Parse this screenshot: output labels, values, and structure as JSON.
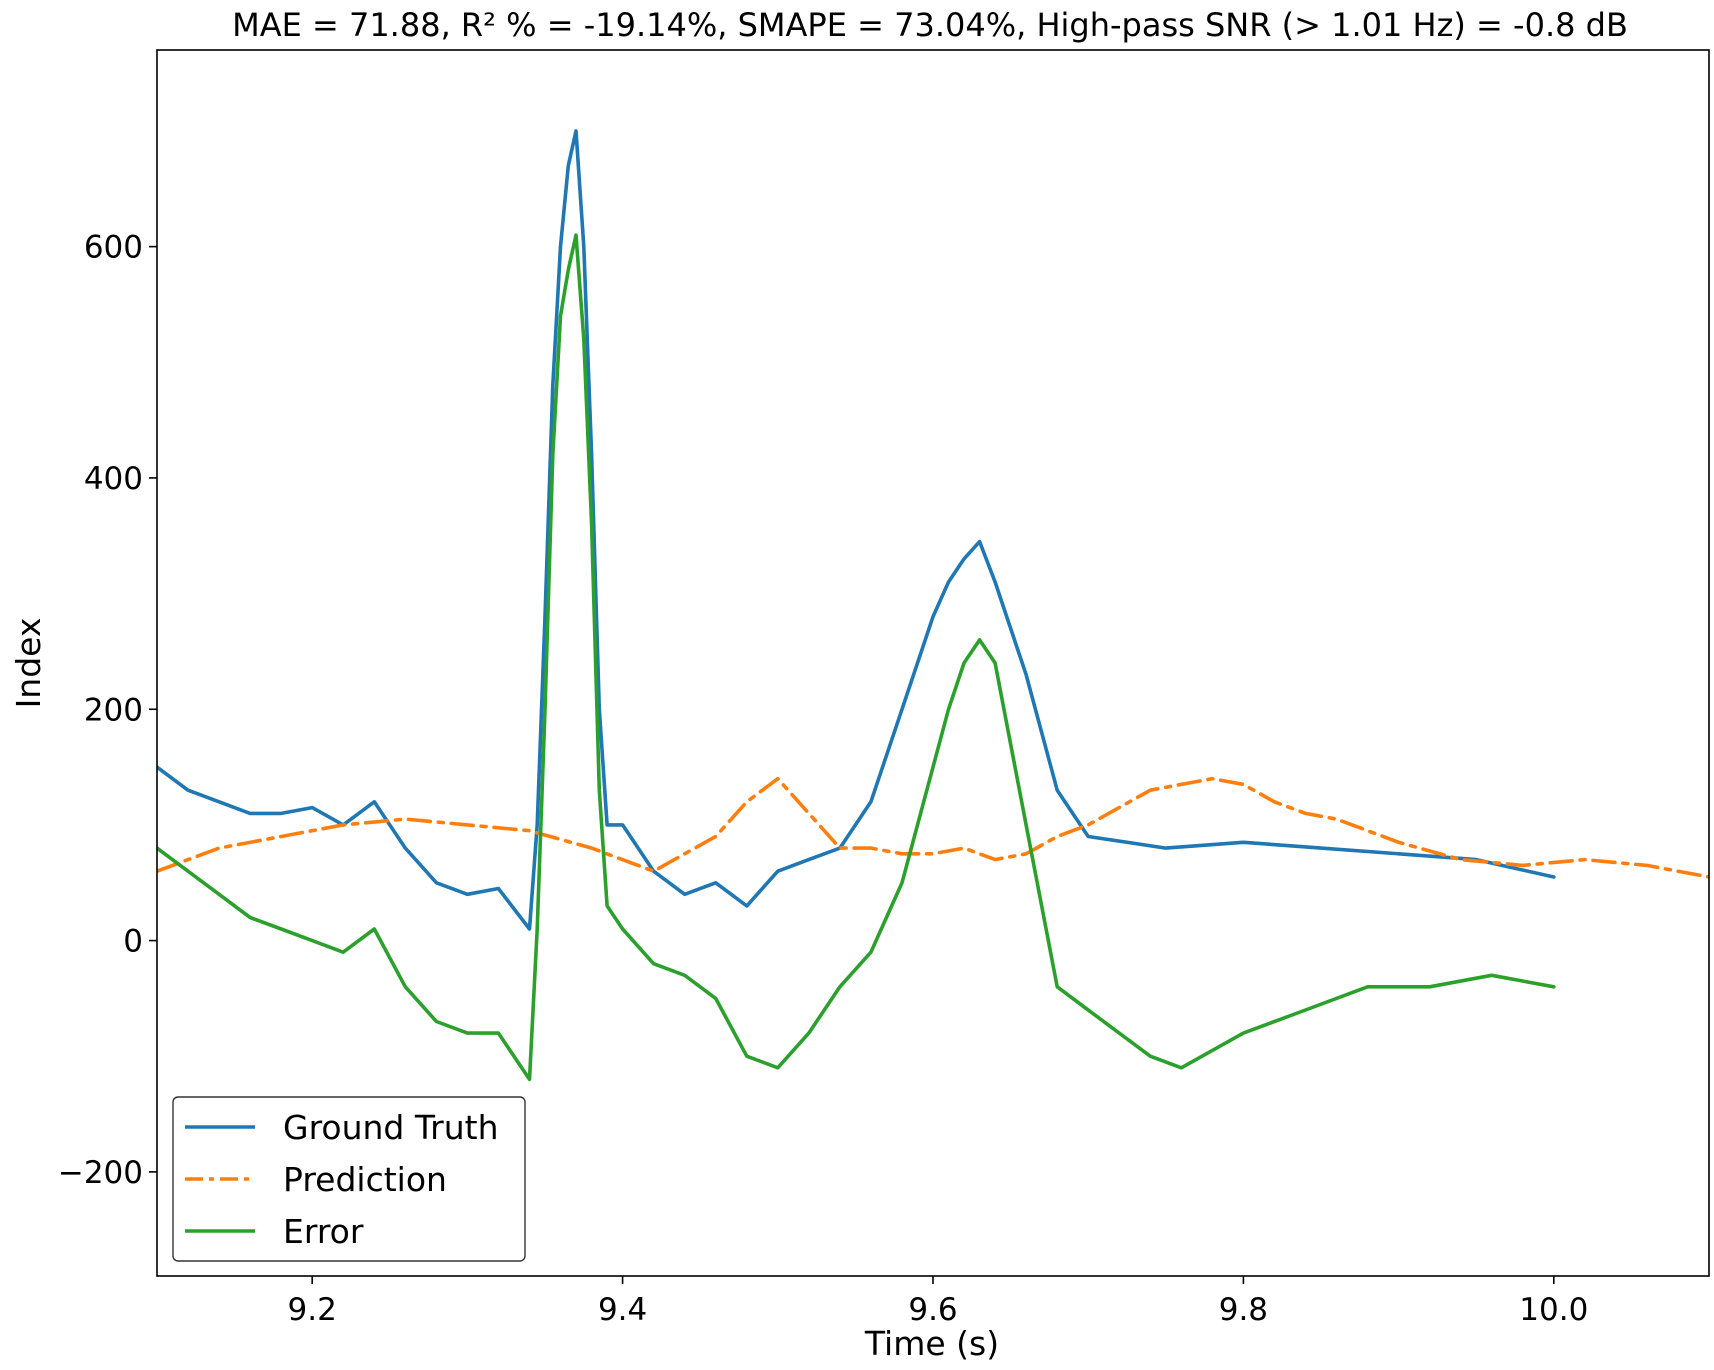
{
  "chart_data": {
    "type": "line",
    "title": "MAE = 71.88, R² % = -19.14%, SMAPE = 73.04%, High-pass SNR (> 1.01 Hz) = -0.8 dB",
    "xlabel": "Time (s)",
    "ylabel": "Index",
    "xlim": [
      9.1,
      10.1
    ],
    "ylim": [
      -290,
      770
    ],
    "x_ticks": [
      9.2,
      9.4,
      9.6,
      9.8,
      10.0
    ],
    "x_tick_labels": [
      "9.2",
      "9.4",
      "9.6",
      "9.8",
      "10.0"
    ],
    "y_ticks": [
      -200,
      0,
      200,
      400,
      600
    ],
    "y_tick_labels": [
      "−200",
      "0",
      "200",
      "400",
      "600"
    ],
    "grid": false,
    "legend_position": "bottom-left",
    "series": [
      {
        "name": "Ground Truth",
        "color": "#1f77b4",
        "style": "solid",
        "x": [
          9.1,
          9.12,
          9.14,
          9.16,
          9.18,
          9.2,
          9.22,
          9.24,
          9.26,
          9.28,
          9.3,
          9.32,
          9.34,
          9.345,
          9.35,
          9.355,
          9.36,
          9.365,
          9.37,
          9.375,
          9.38,
          9.385,
          9.39,
          9.4,
          9.42,
          9.44,
          9.46,
          9.48,
          9.5,
          9.52,
          9.54,
          9.56,
          9.58,
          9.6,
          9.61,
          9.62,
          9.63,
          9.64,
          9.66,
          9.68,
          9.7,
          9.75,
          9.8,
          9.85,
          9.9,
          9.95,
          10.0
        ],
        "y": [
          150,
          130,
          120,
          110,
          110,
          115,
          100,
          120,
          80,
          50,
          40,
          45,
          10,
          100,
          280,
          480,
          600,
          670,
          700,
          600,
          420,
          200,
          100,
          100,
          60,
          40,
          50,
          30,
          60,
          70,
          80,
          120,
          200,
          280,
          310,
          330,
          345,
          310,
          230,
          130,
          90,
          80,
          85,
          80,
          75,
          70,
          55
        ]
      },
      {
        "name": "Prediction",
        "color": "#ff7f0e",
        "style": "dashdot",
        "x": [
          9.1,
          9.14,
          9.18,
          9.22,
          9.26,
          9.3,
          9.34,
          9.38,
          9.42,
          9.46,
          9.48,
          9.5,
          9.52,
          9.54,
          9.56,
          9.58,
          9.6,
          9.62,
          9.64,
          9.66,
          9.68,
          9.7,
          9.72,
          9.74,
          9.76,
          9.78,
          9.8,
          9.82,
          9.84,
          9.86,
          9.88,
          9.9,
          9.94,
          9.98,
          10.02,
          10.06,
          10.1
        ],
        "y": [
          60,
          80,
          90,
          100,
          105,
          100,
          95,
          80,
          60,
          90,
          120,
          140,
          110,
          80,
          80,
          75,
          75,
          80,
          70,
          75,
          90,
          100,
          115,
          130,
          135,
          140,
          135,
          120,
          110,
          105,
          95,
          85,
          70,
          65,
          70,
          65,
          55
        ]
      },
      {
        "name": "Error",
        "color": "#2ca02c",
        "style": "solid",
        "x": [
          9.1,
          9.12,
          9.14,
          9.16,
          9.18,
          9.2,
          9.22,
          9.24,
          9.26,
          9.28,
          9.3,
          9.32,
          9.34,
          9.345,
          9.35,
          9.355,
          9.36,
          9.365,
          9.37,
          9.375,
          9.38,
          9.385,
          9.39,
          9.4,
          9.42,
          9.44,
          9.46,
          9.48,
          9.5,
          9.52,
          9.54,
          9.56,
          9.58,
          9.6,
          9.61,
          9.62,
          9.63,
          9.64,
          9.66,
          9.68,
          9.7,
          9.72,
          9.74,
          9.76,
          9.8,
          9.84,
          9.88,
          9.92,
          9.96,
          10.0
        ],
        "y": [
          80,
          60,
          40,
          20,
          10,
          0,
          -10,
          10,
          -40,
          -70,
          -80,
          -80,
          -120,
          10,
          200,
          420,
          540,
          580,
          610,
          520,
          360,
          130,
          30,
          10,
          -20,
          -30,
          -50,
          -100,
          -110,
          -80,
          -40,
          -10,
          50,
          150,
          200,
          240,
          260,
          240,
          100,
          -40,
          -60,
          -80,
          -100,
          -110,
          -80,
          -60,
          -40,
          -40,
          -30,
          -40
        ]
      }
    ]
  }
}
